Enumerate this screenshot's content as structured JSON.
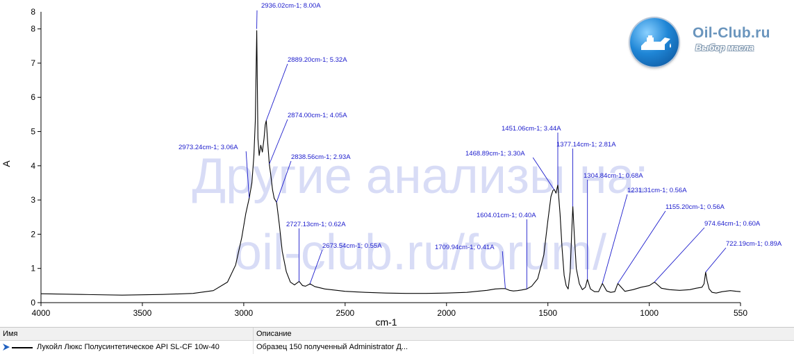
{
  "chart_data": {
    "type": "line",
    "xlabel": "cm-1",
    "ylabel": "A",
    "xlim": [
      4000,
      550
    ],
    "ylim": [
      0,
      8.5
    ],
    "x_ticks": [
      4000,
      3500,
      3000,
      2500,
      2000,
      1500,
      1000,
      550
    ],
    "y_ticks": [
      0,
      1,
      2,
      3,
      4,
      5,
      6,
      7,
      8
    ],
    "y_top_label": "8",
    "grid": false,
    "series": [
      {
        "name": "Лукойл Люкс Полусинтетическое API SL-CF 10w-40",
        "x": [
          4000,
          3800,
          3600,
          3400,
          3250,
          3150,
          3080,
          3040,
          3010,
          2990,
          2973,
          2960,
          2950,
          2943,
          2936,
          2930,
          2924,
          2916,
          2908,
          2900,
          2894,
          2889,
          2882,
          2874,
          2866,
          2858,
          2850,
          2838,
          2825,
          2810,
          2790,
          2770,
          2750,
          2727,
          2710,
          2695,
          2673,
          2650,
          2600,
          2500,
          2400,
          2300,
          2200,
          2100,
          2000,
          1900,
          1850,
          1800,
          1760,
          1730,
          1710,
          1690,
          1670,
          1650,
          1630,
          1604,
          1580,
          1550,
          1520,
          1500,
          1485,
          1475,
          1468,
          1460,
          1451,
          1440,
          1430,
          1420,
          1410,
          1400,
          1390,
          1383,
          1377,
          1370,
          1360,
          1345,
          1330,
          1315,
          1305,
          1290,
          1270,
          1250,
          1231,
          1210,
          1190,
          1170,
          1155,
          1120,
          1080,
          1040,
          1000,
          974,
          940,
          900,
          850,
          800,
          770,
          740,
          730,
          722,
          715,
          705,
          690,
          670,
          640,
          600,
          570,
          550
        ],
        "y": [
          0.26,
          0.24,
          0.22,
          0.24,
          0.27,
          0.35,
          0.6,
          1.1,
          1.9,
          2.6,
          3.06,
          3.5,
          4.3,
          5.3,
          7.95,
          4.8,
          4.3,
          4.6,
          4.4,
          4.8,
          5.2,
          5.32,
          4.7,
          4.05,
          3.7,
          3.3,
          3.05,
          2.93,
          2.3,
          1.5,
          0.9,
          0.6,
          0.52,
          0.62,
          0.5,
          0.48,
          0.55,
          0.47,
          0.4,
          0.33,
          0.3,
          0.28,
          0.27,
          0.27,
          0.28,
          0.3,
          0.33,
          0.36,
          0.4,
          0.41,
          0.41,
          0.36,
          0.34,
          0.35,
          0.37,
          0.4,
          0.48,
          0.7,
          1.4,
          2.4,
          3.1,
          3.28,
          3.3,
          3.2,
          3.44,
          2.6,
          1.6,
          0.8,
          0.5,
          0.4,
          0.9,
          2.0,
          2.81,
          2.0,
          1.0,
          0.55,
          0.38,
          0.45,
          0.68,
          0.4,
          0.32,
          0.32,
          0.56,
          0.34,
          0.3,
          0.32,
          0.56,
          0.33,
          0.38,
          0.45,
          0.5,
          0.6,
          0.42,
          0.38,
          0.36,
          0.38,
          0.42,
          0.45,
          0.55,
          0.89,
          0.65,
          0.4,
          0.3,
          0.28,
          0.32,
          0.35,
          0.33,
          0.32
        ]
      }
    ],
    "annotations": [
      {
        "x": 2936.02,
        "y": 8.0,
        "text": "2936.02cm-1; 8.00A"
      },
      {
        "x": 2889.2,
        "y": 5.32,
        "text": "2889.20cm-1; 5.32A"
      },
      {
        "x": 2874.0,
        "y": 4.05,
        "text": "2874.00cm-1; 4.05A"
      },
      {
        "x": 2973.24,
        "y": 3.06,
        "text": "2973.24cm-1; 3.06A"
      },
      {
        "x": 2838.56,
        "y": 2.93,
        "text": "2838.56cm-1; 2.93A"
      },
      {
        "x": 2727.13,
        "y": 0.62,
        "text": "2727.13cm-1; 0.62A"
      },
      {
        "x": 2673.54,
        "y": 0.55,
        "text": "2673.54cm-1; 0.55A"
      },
      {
        "x": 1709.94,
        "y": 0.41,
        "text": "1709.94cm-1; 0.41A"
      },
      {
        "x": 1604.01,
        "y": 0.4,
        "text": "1604.01cm-1; 0.40A"
      },
      {
        "x": 1468.89,
        "y": 3.3,
        "text": "1468.89cm-1; 3.30A"
      },
      {
        "x": 1451.06,
        "y": 3.44,
        "text": "1451.06cm-1; 3.44A"
      },
      {
        "x": 1377.14,
        "y": 2.81,
        "text": "1377.14cm-1; 2.81A"
      },
      {
        "x": 1304.84,
        "y": 0.68,
        "text": "1304.84cm-1; 0.68A"
      },
      {
        "x": 1231.31,
        "y": 0.56,
        "text": "1231.31cm-1; 0.56A"
      },
      {
        "x": 1155.2,
        "y": 0.56,
        "text": "1155.20cm-1; 0.56A"
      },
      {
        "x": 974.64,
        "y": 0.6,
        "text": "974.64cm-1; 0.60A"
      },
      {
        "x": 722.19,
        "y": 0.89,
        "text": "722.19cm-1; 0.89A"
      }
    ],
    "colors": {
      "line": "#000000",
      "annotation": "#1a1acc",
      "watermark": "#d8dcf6"
    }
  },
  "watermark": {
    "line1": "Другие анализы на:",
    "line2": "oil-club.ru/forum/"
  },
  "logo": {
    "title": "Oil-Club.ru",
    "subtitle": "Выбор масла",
    "icon": "oil-can-icon"
  },
  "legend_table": {
    "col_name": "Имя",
    "col_desc": "Описание",
    "rows": [
      {
        "name": "Лукойл Люкс Полусинтетическое API SL-CF 10w-40",
        "desc": "Образец 150 полученный Administrator Д..."
      }
    ]
  }
}
